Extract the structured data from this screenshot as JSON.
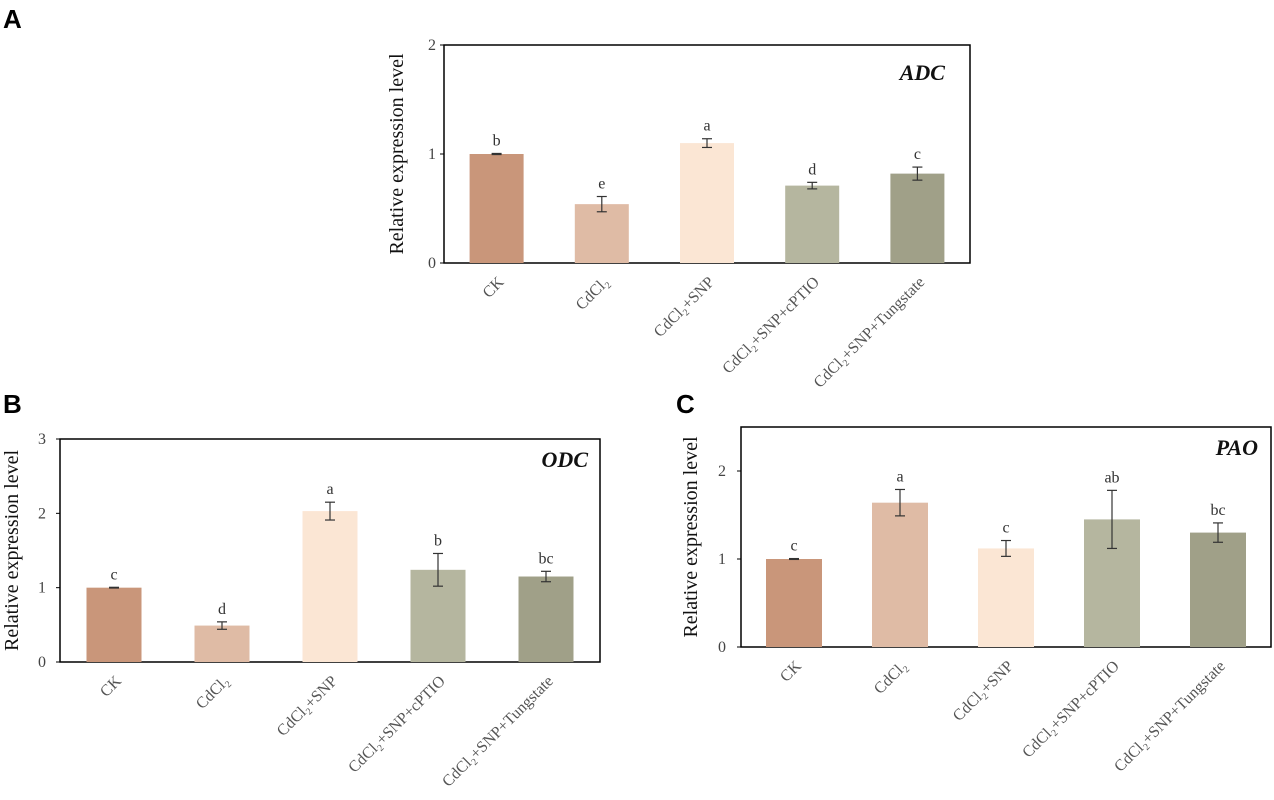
{
  "chart_data": [
    {
      "panel": "A",
      "type": "bar",
      "title": "ADC",
      "ylabel": "Relative expression level",
      "ylim": [
        0,
        2
      ],
      "yticks": [
        "0",
        "1",
        "2"
      ],
      "categories": [
        "CK",
        "CdCl₂",
        "CdCl₂+SNP",
        "CdCl₂+SNP+cPTIO",
        "CdCl₂+SNP+Tungstate"
      ],
      "values": [
        1.0,
        0.54,
        1.1,
        0.71,
        0.82
      ],
      "errors": [
        0.005,
        0.07,
        0.04,
        0.03,
        0.06
      ],
      "letters": [
        "b",
        "e",
        "a",
        "d",
        "c"
      ]
    },
    {
      "panel": "B",
      "type": "bar",
      "title": "ODC",
      "ylabel": "Relative expression level",
      "ylim": [
        0,
        3
      ],
      "yticks": [
        "0",
        "1",
        "2",
        "3"
      ],
      "categories": [
        "CK",
        "CdCl₂",
        "CdCl₂+SNP",
        "CdCl₂+SNP+cPTIO",
        "CdCl₂+SNP+Tungstate"
      ],
      "values": [
        1.0,
        0.49,
        2.03,
        1.24,
        1.15
      ],
      "errors": [
        0.005,
        0.05,
        0.12,
        0.22,
        0.07
      ],
      "letters": [
        "c",
        "d",
        "a",
        "b",
        "bc"
      ]
    },
    {
      "panel": "C",
      "type": "bar",
      "title": "PAO",
      "ylabel": "Relative expression level",
      "ylim": [
        0,
        2.5
      ],
      "yticks": [
        "0",
        "1",
        "2"
      ],
      "categories": [
        "CK",
        "CdCl₂",
        "CdCl₂+SNP",
        "CdCl₂+SNP+cPTIO",
        "CdCl₂+SNP+Tungstate"
      ],
      "values": [
        1.0,
        1.64,
        1.12,
        1.45,
        1.3
      ],
      "errors": [
        0.005,
        0.15,
        0.09,
        0.33,
        0.11
      ],
      "letters": [
        "c",
        "a",
        "c",
        "ab",
        "bc"
      ]
    }
  ],
  "colors": {
    "bars": [
      "#c9967a",
      "#dfbba5",
      "#fbe6d4",
      "#b5b69f",
      "#a0a088"
    ],
    "axis": "#000000",
    "errorbar": "#333333"
  }
}
